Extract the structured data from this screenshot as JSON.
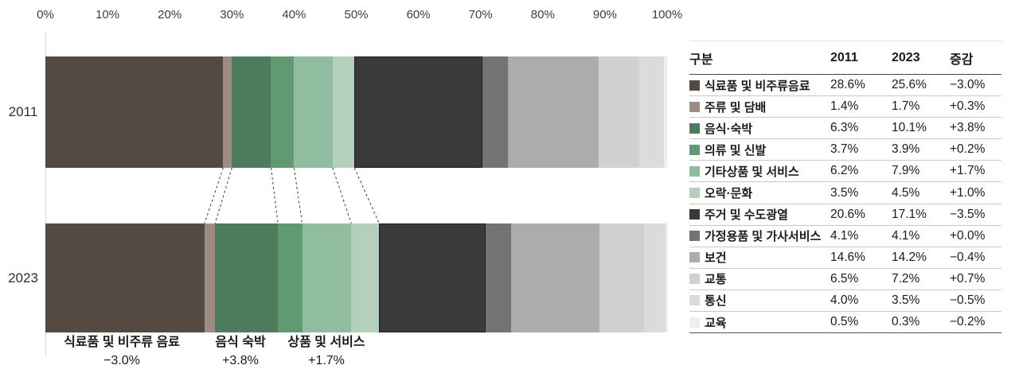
{
  "chart_data": {
    "type": "bar",
    "orientation": "horizontal-stacked",
    "title": "",
    "x_axis": {
      "ticks": [
        "0%",
        "10%",
        "20%",
        "30%",
        "40%",
        "50%",
        "60%",
        "70%",
        "80%",
        "90%",
        "100%"
      ],
      "range": [
        0,
        100
      ],
      "unit": "%",
      "grid": false
    },
    "categories": [
      "식료품 및 비주류음료",
      "주류 및 담배",
      "음식·숙박",
      "의류 및 신발",
      "기타상품 및 서비스",
      "오락·문화",
      "주거 및 수도광열",
      "가정용품 및 가사서비스",
      "보건",
      "교통",
      "통신",
      "교육"
    ],
    "colors": [
      "#554A42",
      "#9C8C83",
      "#4C7C5D",
      "#5F9A73",
      "#90BC9F",
      "#B4D0BC",
      "#3A3A3C",
      "#737373",
      "#ACACAC",
      "#D1D1D1",
      "#DBDBDB",
      "#EFEFEF"
    ],
    "series": [
      {
        "name": "2011",
        "values": [
          28.6,
          1.4,
          6.3,
          3.7,
          6.2,
          3.5,
          20.6,
          4.1,
          14.6,
          6.5,
          4.0,
          0.5
        ]
      },
      {
        "name": "2023",
        "values": [
          25.6,
          1.7,
          10.1,
          3.9,
          7.9,
          4.5,
          17.1,
          4.1,
          14.2,
          7.2,
          3.5,
          0.3
        ]
      }
    ],
    "deltas": [
      "−3.0%",
      "+0.3%",
      "+3.8%",
      "+0.2%",
      "+1.7%",
      "+1.0%",
      "−3.5%",
      "+0.0%",
      "−0.4%",
      "+0.7%",
      "−0.5%",
      "−0.2%"
    ],
    "highlighted_category": "주거 및 수도광열",
    "connected_categories": 6,
    "legend_position": "right-table"
  },
  "annotations": [
    {
      "label": "식료품 및 비주류 음료",
      "delta": "−3.0%",
      "x": 153
    },
    {
      "label": "음식 숙박",
      "delta": "+3.8%",
      "x": 302
    },
    {
      "label": "상품 및 서비스",
      "delta": "+1.7%",
      "x": 410
    }
  ],
  "table": {
    "headers": [
      "구분",
      "2011",
      "2023",
      "증감"
    ],
    "rows": [
      {
        "label": "식료품 및 비주류음료",
        "color": "#554A42",
        "v2011": "28.6%",
        "v2023": "25.6%",
        "delta": "−3.0%"
      },
      {
        "label": "주류 및 담배",
        "color": "#9C8C83",
        "v2011": "1.4%",
        "v2023": "1.7%",
        "delta": "+0.3%"
      },
      {
        "label": "음식·숙박",
        "color": "#4C7C5D",
        "v2011": "6.3%",
        "v2023": "10.1%",
        "delta": "+3.8%"
      },
      {
        "label": "의류 및 신발",
        "color": "#5F9A73",
        "v2011": "3.7%",
        "v2023": "3.9%",
        "delta": "+0.2%"
      },
      {
        "label": "기타상품 및 서비스",
        "color": "#90BC9F",
        "v2011": "6.2%",
        "v2023": "7.9%",
        "delta": "+1.7%"
      },
      {
        "label": "오락·문화",
        "color": "#B4D0BC",
        "v2011": "3.5%",
        "v2023": "4.5%",
        "delta": "+1.0%"
      },
      {
        "label": "주거 및 수도광열",
        "color": "#3A3A3C",
        "v2011": "20.6%",
        "v2023": "17.1%",
        "delta": "−3.5%"
      },
      {
        "label": "가정용품 및 가사서비스",
        "color": "#737373",
        "v2011": "4.1%",
        "v2023": "4.1%",
        "delta": "+0.0%"
      },
      {
        "label": "보건",
        "color": "#ACACAC",
        "v2011": "14.6%",
        "v2023": "14.2%",
        "delta": "−0.4%"
      },
      {
        "label": "교통",
        "color": "#D1D1D1",
        "v2011": "6.5%",
        "v2023": "7.2%",
        "delta": "+0.7%"
      },
      {
        "label": "통신",
        "color": "#DBDBDB",
        "v2011": "4.0%",
        "v2023": "3.5%",
        "delta": "−0.5%"
      },
      {
        "label": "교육",
        "color": "#EFEFEF",
        "v2011": "0.5%",
        "v2023": "0.3%",
        "delta": "−0.2%"
      }
    ]
  }
}
